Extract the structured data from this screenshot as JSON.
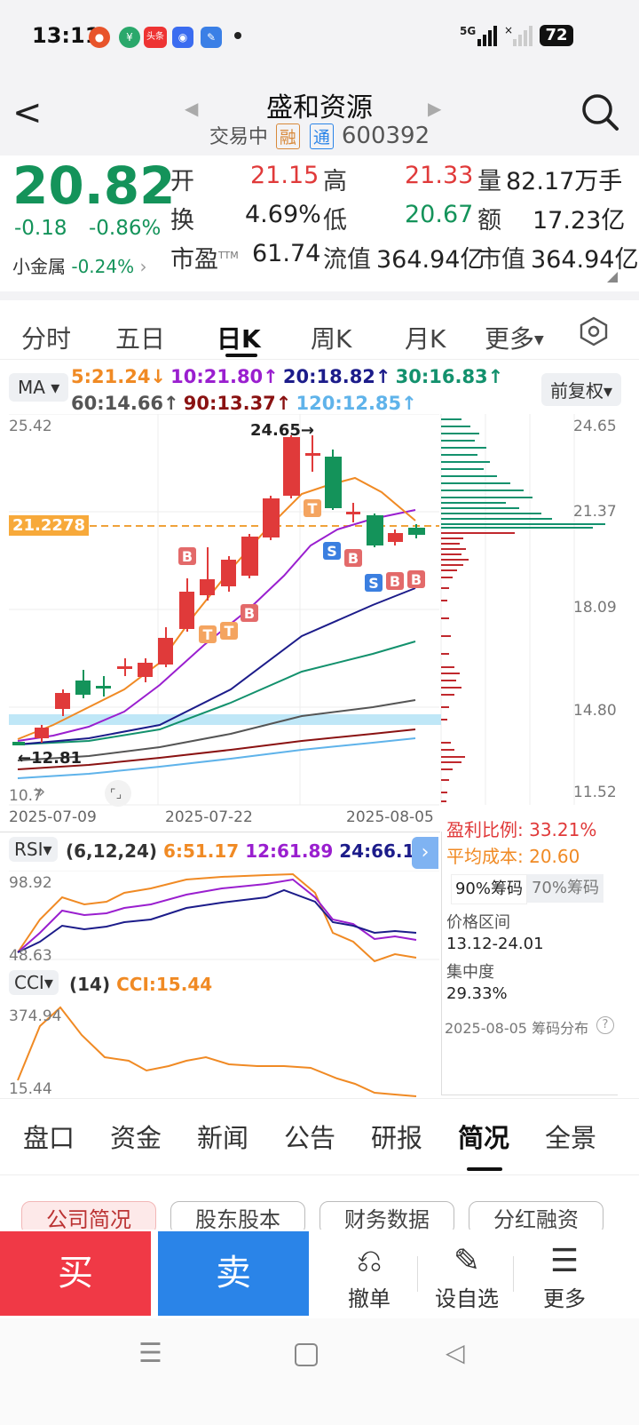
{
  "status_bar": {
    "time": "13:11",
    "battery": "72",
    "signal_label": "5G"
  },
  "header": {
    "stock_name": "盛和资源",
    "status": "交易中",
    "tag_margin": "融",
    "tag_connect": "通",
    "code": "600392"
  },
  "quote": {
    "price": "20.82",
    "change": "-0.18",
    "change_pct": "-0.86%",
    "sector_name": "小金属",
    "sector_pct": "-0.24%",
    "open_label": "开",
    "open": "21.15",
    "high_label": "高",
    "high": "21.33",
    "volume_label": "量",
    "volume": "82.17万手",
    "turnover_label": "换",
    "turnover": "4.69%",
    "low_label": "低",
    "low": "20.67",
    "amount_label": "额",
    "amount": "17.23亿",
    "pe_label": "市盈",
    "pe_sup": "TTM",
    "pe": "61.74",
    "float_cap_label": "流值",
    "float_cap": "364.94亿",
    "market_cap_label": "市值",
    "market_cap": "364.94亿"
  },
  "chart_tabs": {
    "t1": "分时",
    "t2": "五日",
    "t3": "日K",
    "t4": "周K",
    "t5": "月K",
    "t6": "更多"
  },
  "ma_legend": {
    "selector": "MA",
    "ma5": "5:21.24↓",
    "ma10": "10:21.80↑",
    "ma20": "20:18.82↑",
    "ma30": "30:16.83↑",
    "ma60": "60:14.66↑",
    "ma90": "90:13.37↑",
    "ma120": "120:12.85↑",
    "adjust": "前复权"
  },
  "kline": {
    "axis_left_top": "25.42",
    "axis_left_bottom": "10.7",
    "axis_right": [
      "24.65",
      "21.37",
      "18.09",
      "14.80",
      "11.52"
    ],
    "cost_line_label": "21.2278",
    "max_label": "24.65→",
    "min_label": "←12.81",
    "dates": [
      "2025-07-09",
      "2025-07-22",
      "2025-08-05"
    ],
    "colors": {
      "up": "#e03a3a",
      "down": "#14935a"
    }
  },
  "chip_panel": {
    "profit_ratio": "盈利比例: 33.21%",
    "avg_cost": "平均成本: 20.60",
    "tab90": "90%筹码",
    "tab70": "70%筹码",
    "range_label": "价格区间",
    "range_value": "13.12-24.01",
    "concentration_label": "集中度",
    "concentration_value": "29.33%",
    "footer": "2025-08-05 筹码分布"
  },
  "rsi": {
    "selector": "RSI",
    "params": "(6,12,24)",
    "rsi6": "6:51.17",
    "rsi12": "12:61.89",
    "rsi24": "24:66.10",
    "axis_top": "98.92",
    "axis_bottom": "48.63"
  },
  "cci": {
    "selector": "CCI",
    "params": "(14)",
    "value": "CCI:15.44",
    "axis_top": "374.94",
    "axis_bottom": "15.44"
  },
  "bottom_tabs": {
    "b1": "盘口",
    "b2": "资金",
    "b3": "新闻",
    "b4": "公告",
    "b5": "研报",
    "b6": "简况",
    "b7": "全景"
  },
  "sub_tabs": {
    "s1": "公司简况",
    "s2": "股东股本",
    "s3": "财务数据",
    "s4": "分红融资"
  },
  "actions": {
    "buy": "买",
    "sell": "卖",
    "cancel": "撤单",
    "watch": "设自选",
    "more": "更多"
  }
}
